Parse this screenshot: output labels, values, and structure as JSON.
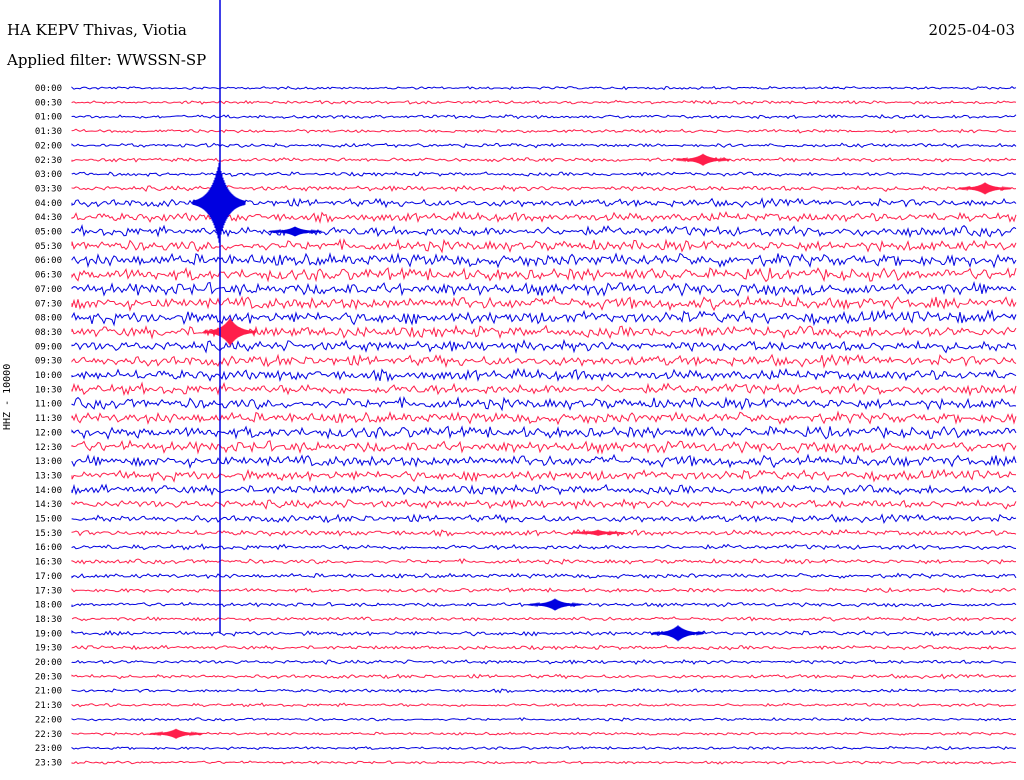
{
  "header": {
    "station": "HA KEPV Thivas, Viotia",
    "filter": "Applied filter: WWSSN-SP",
    "date": "2025-04-03",
    "channel": "HHZ - 10000"
  },
  "colors": {
    "even_trace": "#0000e0",
    "odd_trace": "#ff1e4a"
  },
  "chart_data": {
    "type": "helicorder",
    "title": "HA KEPV Thivas, Viotia",
    "date": "2025-04-03",
    "filter": "WWSSN-SP",
    "ylabel": "HHZ - 10000",
    "row_minutes": 30,
    "rows": [
      "00:00",
      "00:30",
      "01:00",
      "01:30",
      "02:00",
      "02:30",
      "03:00",
      "03:30",
      "04:00",
      "04:30",
      "05:00",
      "05:30",
      "06:00",
      "06:30",
      "07:00",
      "07:30",
      "08:00",
      "08:30",
      "09:00",
      "09:30",
      "10:00",
      "10:30",
      "11:00",
      "11:30",
      "12:00",
      "12:30",
      "13:00",
      "13:30",
      "14:00",
      "14:30",
      "15:00",
      "15:30",
      "16:00",
      "16:30",
      "17:00",
      "17:30",
      "18:00",
      "18:30",
      "19:00",
      "19:30",
      "20:00",
      "20:30",
      "21:00",
      "21:30",
      "22:00",
      "22:30",
      "23:00",
      "23:30"
    ],
    "noise_level": [
      0.5,
      0.6,
      0.6,
      0.6,
      0.7,
      0.7,
      0.7,
      0.9,
      1.4,
      1.6,
      1.8,
      1.9,
      2.2,
      2.2,
      2.2,
      2.2,
      2.2,
      2.0,
      1.9,
      1.9,
      1.9,
      1.9,
      1.9,
      1.9,
      2.0,
      2.0,
      2.0,
      1.8,
      1.6,
      1.5,
      1.3,
      1.0,
      0.9,
      0.8,
      0.8,
      0.7,
      0.7,
      0.7,
      0.8,
      0.7,
      0.7,
      0.7,
      0.6,
      0.6,
      0.5,
      0.5,
      0.5,
      0.5
    ],
    "events": [
      {
        "time": "04:00",
        "amplitude": 40,
        "note": "major spike"
      },
      {
        "time": "08:30",
        "amplitude": 14
      },
      {
        "time": "02:30",
        "amplitude": 6
      },
      {
        "time": "03:30",
        "amplitude": 6
      },
      {
        "time": "05:00",
        "amplitude": 5
      },
      {
        "time": "18:00",
        "amplitude": 6
      },
      {
        "time": "19:00",
        "amplitude": 8
      },
      {
        "time": "22:30",
        "amplitude": 5
      },
      {
        "time": "15:30",
        "amplitude": 3
      }
    ]
  }
}
